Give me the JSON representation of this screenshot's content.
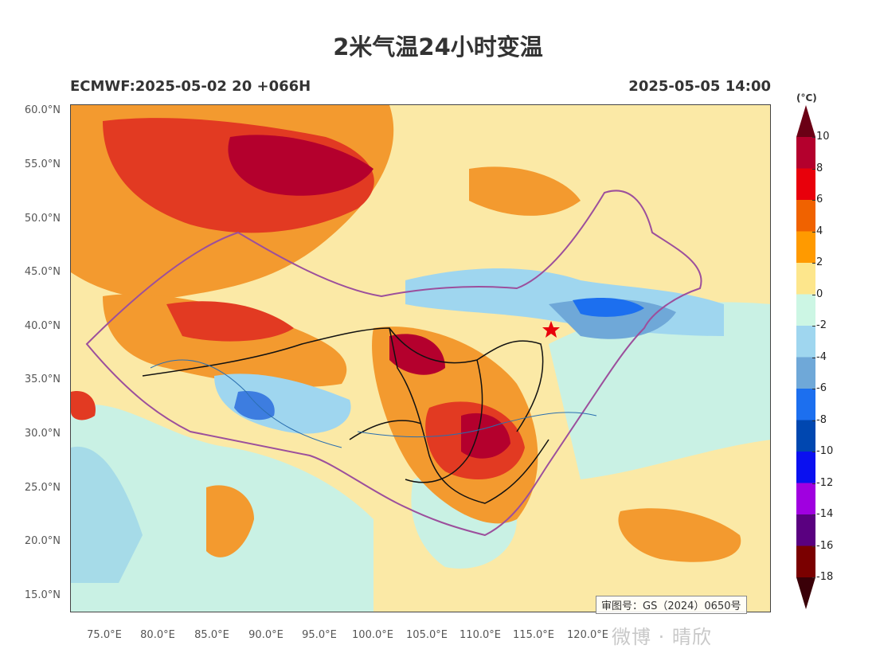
{
  "header": {
    "title": "2米气温24小时变温",
    "model_run": "ECMWF:2025-05-02 20 +066H",
    "valid_time": "2025-05-05 14:00"
  },
  "map": {
    "lat_labels": [
      "60.0°N",
      "55.0°N",
      "50.0°N",
      "45.0°N",
      "40.0°N",
      "35.0°N",
      "30.0°N",
      "25.0°N",
      "20.0°N",
      "15.0°N"
    ],
    "lon_labels": [
      "75.0°E",
      "80.0°E",
      "85.0°E",
      "90.0°E",
      "95.0°E",
      "100.0°E",
      "105.0°E",
      "110.0°E",
      "115.0°E",
      "120.0°E"
    ],
    "approval_number": "审图号：GS（2024）0650号",
    "capital_marker": "star"
  },
  "colorbar": {
    "unit": "(°C)",
    "labels": [
      "10",
      "8",
      "6",
      "4",
      "2",
      "0",
      "-2",
      "-4",
      "-6",
      "-8",
      "-10",
      "-12",
      "-14",
      "-16",
      "-18"
    ],
    "colors": [
      "#6b0015",
      "#b4002d",
      "#e8000b",
      "#f06200",
      "#ff9a00",
      "#fde68c",
      "#ccf6e4",
      "#9fd6ef",
      "#6fa8d8",
      "#1c6fef",
      "#0047b0",
      "#0a10f0",
      "#a000e0",
      "#5a0080",
      "#7a0000",
      "#3a0008"
    ]
  },
  "watermark": "微博 · 晴欣"
}
